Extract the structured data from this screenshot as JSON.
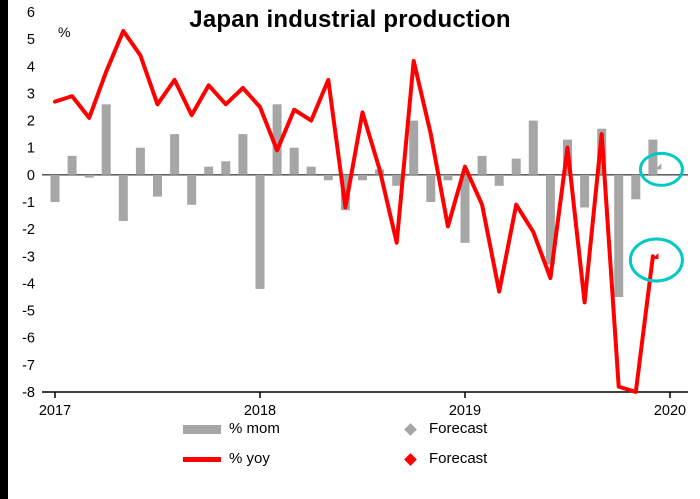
{
  "chart_data": {
    "type": "bar",
    "combo": "bar + line",
    "title": "Japan industrial production",
    "y_unit": "%",
    "ylim": [
      -8,
      6
    ],
    "y_ticks": [
      6,
      5,
      4,
      3,
      2,
      1,
      0,
      -1,
      -2,
      -3,
      -4,
      -5,
      -6,
      -7,
      -8
    ],
    "grid": false,
    "legend_position": "bottom",
    "x_tick_labels": [
      "2017",
      "2018",
      "2019",
      "2020"
    ],
    "x_tick_month_index": [
      0,
      12,
      24,
      36
    ],
    "months": [
      "Jan 2017",
      "Feb 2017",
      "Mar 2017",
      "Apr 2017",
      "May 2017",
      "Jun 2017",
      "Jul 2017",
      "Aug 2017",
      "Sep 2017",
      "Oct 2017",
      "Nov 2017",
      "Dec 2017",
      "Jan 2018",
      "Feb 2018",
      "Mar 2018",
      "Apr 2018",
      "May 2018",
      "Jun 2018",
      "Jul 2018",
      "Aug 2018",
      "Sep 2018",
      "Oct 2018",
      "Nov 2018",
      "Dec 2018",
      "Jan 2019",
      "Feb 2019",
      "Mar 2019",
      "Apr 2019",
      "May 2019",
      "Jun 2019",
      "Jul 2019",
      "Aug 2019",
      "Sep 2019",
      "Oct 2019",
      "Nov 2019",
      "Dec 2019"
    ],
    "series": [
      {
        "name": "% mom",
        "type": "bar",
        "color": "#A6A6A6",
        "values": [
          -1.0,
          0.7,
          -0.1,
          2.6,
          -1.7,
          1.0,
          -0.8,
          1.5,
          -1.1,
          0.3,
          0.5,
          1.5,
          -4.2,
          2.6,
          1.0,
          0.3,
          -0.2,
          -1.3,
          -0.2,
          0.2,
          -0.4,
          2.0,
          -1.0,
          -0.2,
          -2.5,
          0.7,
          -0.4,
          0.6,
          2.0,
          -3.3,
          1.3,
          -1.2,
          1.7,
          -4.5,
          -0.9,
          1.3
        ]
      },
      {
        "name": "% yoy",
        "type": "line",
        "color": "#FF0000",
        "values": [
          2.7,
          2.9,
          2.1,
          3.8,
          5.3,
          4.4,
          2.6,
          3.5,
          2.2,
          3.3,
          2.6,
          3.2,
          2.5,
          0.9,
          2.4,
          2.0,
          3.5,
          -1.2,
          2.3,
          0.2,
          -2.5,
          4.2,
          1.5,
          -1.9,
          0.3,
          -1.1,
          -4.3,
          -1.1,
          -2.1,
          -3.8,
          1.0,
          -4.7,
          1.5,
          -7.8,
          -8.0,
          -3.0
        ]
      }
    ],
    "forecast": {
      "x_label": "2020",
      "mom": {
        "name": "Forecast",
        "value": 0.2,
        "color": "#A6A6A6"
      },
      "yoy": {
        "name": "Forecast",
        "value": -3.1,
        "color": "#FF0000"
      }
    },
    "highlight_color": "#00C9C4",
    "annotations": [
      {
        "type": "ellipse-highlight",
        "around": "mom-forecast-diamond",
        "color": "#00C9C4"
      },
      {
        "type": "ellipse-highlight",
        "around": "yoy-forecast-diamond",
        "color": "#00C9C4"
      }
    ]
  },
  "legend": {
    "items": [
      {
        "swatch": "bar",
        "color": "#A6A6A6",
        "label": "% mom"
      },
      {
        "swatch": "diamond",
        "color": "#A6A6A6",
        "label": "Forecast"
      },
      {
        "swatch": "line",
        "color": "#FF0000",
        "label": "% yoy"
      },
      {
        "swatch": "diamond",
        "color": "#FF0000",
        "label": "Forecast"
      }
    ]
  }
}
